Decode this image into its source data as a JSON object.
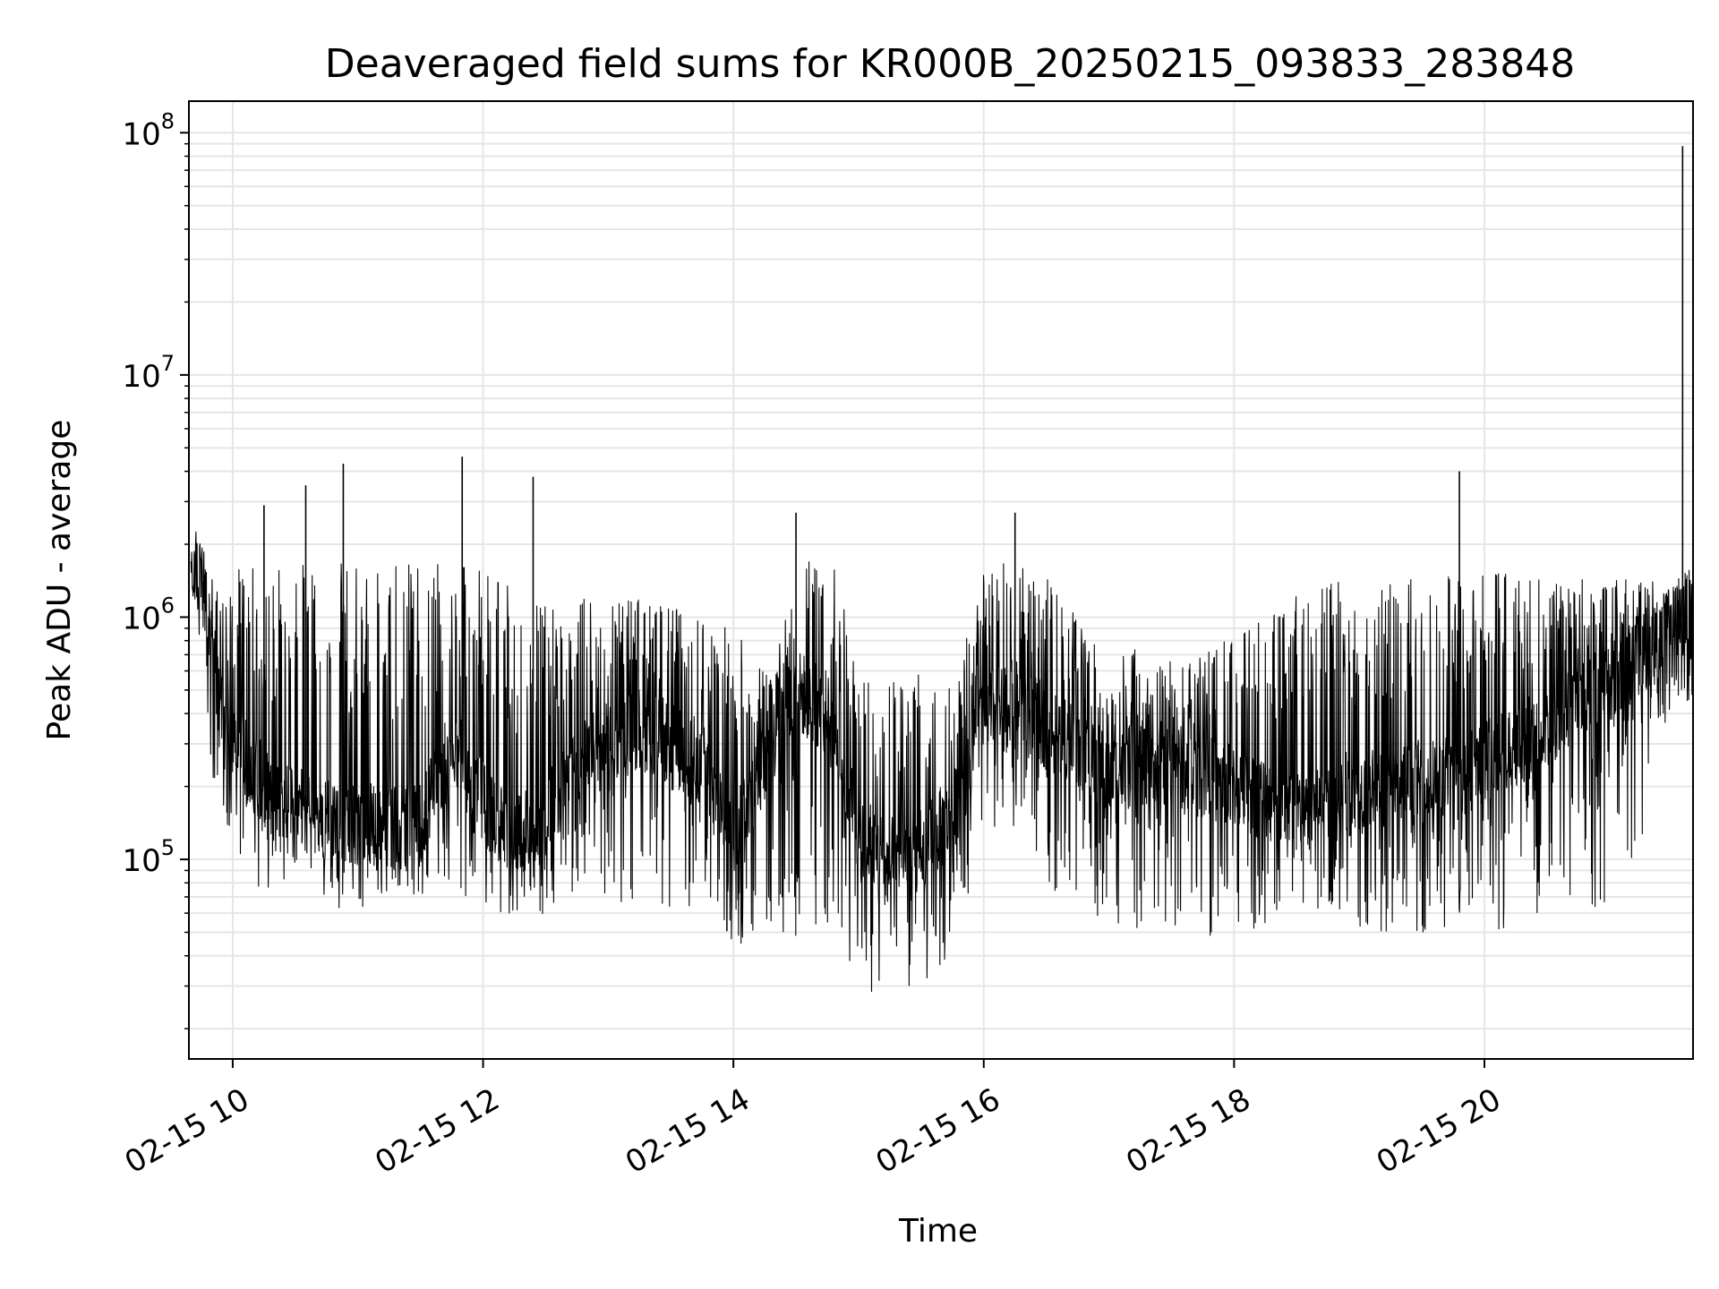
{
  "chart_data": {
    "type": "line",
    "title": "Deaveraged field sums for KR000B_20250215_093833_283848",
    "xlabel": "Time",
    "ylabel": "Peak ADU - average",
    "yscale": "log",
    "ylim": [
      15000,
      135000000
    ],
    "xlim": [
      "2025-02-15 09:39",
      "2025-02-15 21:40"
    ],
    "grid": true,
    "line_color": "#000000",
    "grid_color": "#e6e6e6",
    "x_ticks": [
      {
        "value": "2025-02-15 10:00",
        "label": "02-15 10"
      },
      {
        "value": "2025-02-15 12:00",
        "label": "02-15 12"
      },
      {
        "value": "2025-02-15 14:00",
        "label": "02-15 14"
      },
      {
        "value": "2025-02-15 16:00",
        "label": "02-15 16"
      },
      {
        "value": "2025-02-15 18:00",
        "label": "02-15 18"
      },
      {
        "value": "2025-02-15 20:00",
        "label": "02-15 20"
      }
    ],
    "y_ticks": [
      {
        "value": 100000,
        "base": "10",
        "exp": "5"
      },
      {
        "value": 1000000,
        "base": "10",
        "exp": "6"
      },
      {
        "value": 10000000,
        "base": "10",
        "exp": "7"
      },
      {
        "value": 100000000,
        "base": "10",
        "exp": "8"
      }
    ],
    "series": [
      {
        "x": [
          "2025-02-15 09:40",
          "2025-02-15 09:45",
          "2025-02-15 09:50",
          "2025-02-15 09:55",
          "2025-02-15 10:00",
          "2025-02-15 10:15",
          "2025-02-15 10:30",
          "2025-02-15 10:45",
          "2025-02-15 11:00",
          "2025-02-15 11:15",
          "2025-02-15 11:30",
          "2025-02-15 11:45",
          "2025-02-15 12:00",
          "2025-02-15 12:15",
          "2025-02-15 12:30",
          "2025-02-15 12:45",
          "2025-02-15 13:00",
          "2025-02-15 13:15",
          "2025-02-15 13:30",
          "2025-02-15 13:45",
          "2025-02-15 14:00",
          "2025-02-15 14:15",
          "2025-02-15 14:30",
          "2025-02-15 14:45",
          "2025-02-15 15:00",
          "2025-02-15 15:15",
          "2025-02-15 15:30",
          "2025-02-15 15:45",
          "2025-02-15 16:00",
          "2025-02-15 16:15",
          "2025-02-15 16:30",
          "2025-02-15 16:45",
          "2025-02-15 17:00",
          "2025-02-15 17:15",
          "2025-02-15 17:30",
          "2025-02-15 17:45",
          "2025-02-15 18:00",
          "2025-02-15 18:15",
          "2025-02-15 18:30",
          "2025-02-15 18:45",
          "2025-02-15 19:00",
          "2025-02-15 19:15",
          "2025-02-15 19:30",
          "2025-02-15 19:45",
          "2025-02-15 20:00",
          "2025-02-15 20:15",
          "2025-02-15 20:30",
          "2025-02-15 20:45",
          "2025-02-15 21:00",
          "2025-02-15 21:15",
          "2025-02-15 21:30",
          "2025-02-15 21:35",
          "2025-02-15 21:40"
        ],
        "y_base": [
          1700000,
          1400000,
          700000,
          400000,
          300000,
          200000,
          160000,
          150000,
          140000,
          135000,
          140000,
          300000,
          170000,
          120000,
          150000,
          250000,
          300000,
          350000,
          300000,
          250000,
          130000,
          260000,
          500000,
          400000,
          130000,
          100000,
          110000,
          150000,
          400000,
          450000,
          350000,
          300000,
          220000,
          250000,
          250000,
          220000,
          200000,
          180000,
          160000,
          180000,
          190000,
          200000,
          210000,
          220000,
          250000,
          300000,
          350000,
          450000,
          550000,
          700000,
          900000,
          1000000,
          950000
        ],
        "y_high": [
          2300000,
          2000000,
          1500000,
          1200000,
          1600000,
          1650000,
          1650000,
          1700000,
          1700000,
          1650000,
          1650000,
          1650000,
          1600000,
          1500000,
          1100000,
          1200000,
          1250000,
          1200000,
          1100000,
          1050000,
          900000,
          600000,
          1500000,
          2200000,
          600000,
          550000,
          600000,
          550000,
          1500000,
          1800000,
          1500000,
          1000000,
          700000,
          750000,
          700000,
          700000,
          850000,
          1100000,
          1300000,
          1400000,
          1450000,
          1500000,
          1500000,
          1550000,
          1550000,
          1550000,
          1550000,
          1500000,
          1450000,
          1450000,
          1400000,
          1500000,
          1600000
        ],
        "y_low": [
          1200000,
          700000,
          190000,
          150000,
          120000,
          70000,
          70000,
          65000,
          60000,
          75000,
          70000,
          80000,
          60000,
          55000,
          60000,
          75000,
          70000,
          60000,
          60000,
          55000,
          45000,
          38000,
          45000,
          50000,
          30000,
          25000,
          28000,
          40000,
          130000,
          110000,
          80000,
          60000,
          55000,
          50000,
          50000,
          48000,
          50000,
          52000,
          55000,
          55000,
          52000,
          50000,
          50000,
          50000,
          50000,
          52000,
          55000,
          60000,
          65000,
          100000,
          400000,
          500000,
          400000
        ],
        "spikes": [
          {
            "x": "2025-02-15 10:15",
            "y": 2900000
          },
          {
            "x": "2025-02-15 10:35",
            "y": 3500000
          },
          {
            "x": "2025-02-15 10:53",
            "y": 4300000
          },
          {
            "x": "2025-02-15 11:50",
            "y": 4600000
          },
          {
            "x": "2025-02-15 12:24",
            "y": 3800000
          },
          {
            "x": "2025-02-15 14:30",
            "y": 2700000
          },
          {
            "x": "2025-02-15 16:15",
            "y": 2700000
          },
          {
            "x": "2025-02-15 19:48",
            "y": 4000000
          },
          {
            "x": "2025-02-15 21:35",
            "y": 88000000
          }
        ]
      }
    ]
  }
}
